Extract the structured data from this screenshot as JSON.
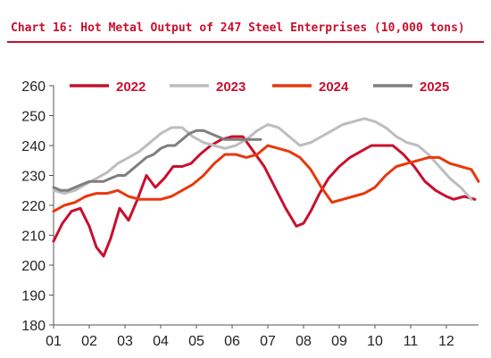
{
  "title": "Chart 16: Hot Metal Output of 247 Steel Enterprises (10,000 tons)",
  "chart_data": {
    "type": "line",
    "title": "Chart 16: Hot Metal Output of 247 Steel Enterprises (10,000 tons)",
    "xlabel": "",
    "ylabel": "",
    "x_ticks": [
      "01",
      "02",
      "03",
      "04",
      "05",
      "06",
      "07",
      "08",
      "09",
      "10",
      "11",
      "12"
    ],
    "xlim": [
      1,
      12.9
    ],
    "ylim": [
      180,
      260
    ],
    "y_ticks": [
      180,
      190,
      200,
      210,
      220,
      230,
      240,
      250,
      260
    ],
    "grid": false,
    "legend_position": "top",
    "series": [
      {
        "name": "2022",
        "color": "#c8102e",
        "x": [
          1.0,
          1.25,
          1.5,
          1.75,
          2.0,
          2.2,
          2.4,
          2.6,
          2.85,
          3.1,
          3.35,
          3.6,
          3.85,
          4.1,
          4.35,
          4.6,
          4.85,
          5.1,
          5.4,
          5.7,
          6.0,
          6.3,
          6.6,
          6.9,
          7.2,
          7.5,
          7.8,
          8.0,
          8.2,
          8.45,
          8.7,
          9.0,
          9.3,
          9.6,
          9.9,
          10.2,
          10.5,
          10.8,
          11.1,
          11.4,
          11.7,
          12.0,
          12.2,
          12.5,
          12.8
        ],
        "y": [
          208,
          214,
          218,
          219,
          213,
          206,
          203,
          209,
          219,
          215,
          222,
          230,
          226,
          229,
          233,
          233,
          234,
          237,
          240,
          242,
          243,
          243,
          238,
          233,
          226,
          219,
          213,
          214,
          218,
          224,
          229,
          233,
          236,
          238,
          240,
          240,
          240,
          237,
          233,
          228,
          225,
          223,
          222,
          223,
          222
        ]
      },
      {
        "name": "2023",
        "color": "#bdbdbd",
        "x": [
          1.0,
          1.3,
          1.6,
          1.9,
          2.2,
          2.5,
          2.8,
          3.1,
          3.4,
          3.7,
          4.0,
          4.3,
          4.6,
          4.9,
          5.2,
          5.5,
          5.8,
          6.1,
          6.4,
          6.7,
          7.0,
          7.3,
          7.6,
          7.9,
          8.2,
          8.5,
          8.8,
          9.1,
          9.4,
          9.7,
          10.0,
          10.3,
          10.6,
          10.9,
          11.2,
          11.5,
          11.8,
          12.1,
          12.4,
          12.7
        ],
        "y": [
          225,
          224,
          225,
          227,
          229,
          231,
          234,
          236,
          238,
          241,
          244,
          246,
          246,
          243,
          241,
          240,
          239,
          240,
          242,
          245,
          247,
          246,
          243,
          240,
          241,
          243,
          245,
          247,
          248,
          249,
          248,
          246,
          243,
          241,
          240,
          237,
          233,
          229,
          226,
          222
        ]
      },
      {
        "name": "2024",
        "color": "#e8380d",
        "x": [
          1.0,
          1.3,
          1.6,
          1.9,
          2.2,
          2.5,
          2.8,
          3.1,
          3.4,
          3.7,
          4.0,
          4.3,
          4.6,
          4.9,
          5.2,
          5.5,
          5.8,
          6.1,
          6.4,
          6.7,
          7.0,
          7.3,
          7.6,
          7.9,
          8.2,
          8.5,
          8.8,
          9.1,
          9.4,
          9.7,
          10.0,
          10.3,
          10.6,
          10.9,
          11.2,
          11.5,
          11.8,
          12.1,
          12.4,
          12.7,
          12.9
        ],
        "y": [
          218,
          220,
          221,
          223,
          224,
          224,
          225,
          223,
          222,
          222,
          222,
          223,
          225,
          227,
          230,
          234,
          237,
          237,
          236,
          237,
          240,
          239,
          238,
          236,
          232,
          226,
          221,
          222,
          223,
          224,
          226,
          230,
          233,
          234,
          235,
          236,
          236,
          234,
          233,
          232,
          228
        ]
      },
      {
        "name": "2025",
        "color": "#7f7f7f",
        "x": [
          1.0,
          1.2,
          1.4,
          1.6,
          1.8,
          2.0,
          2.2,
          2.4,
          2.6,
          2.8,
          3.0,
          3.2,
          3.4,
          3.6,
          3.8,
          4.0,
          4.2,
          4.4,
          4.6,
          4.8,
          5.0,
          5.2,
          5.4,
          5.6,
          5.8,
          6.0,
          6.2,
          6.5,
          6.8
        ],
        "y": [
          226,
          225,
          225,
          226,
          227,
          228,
          228,
          228,
          229,
          230,
          230,
          232,
          234,
          236,
          237,
          239,
          240,
          240,
          242,
          244,
          245,
          245,
          244,
          243,
          242,
          242,
          242,
          242,
          242
        ]
      }
    ]
  }
}
